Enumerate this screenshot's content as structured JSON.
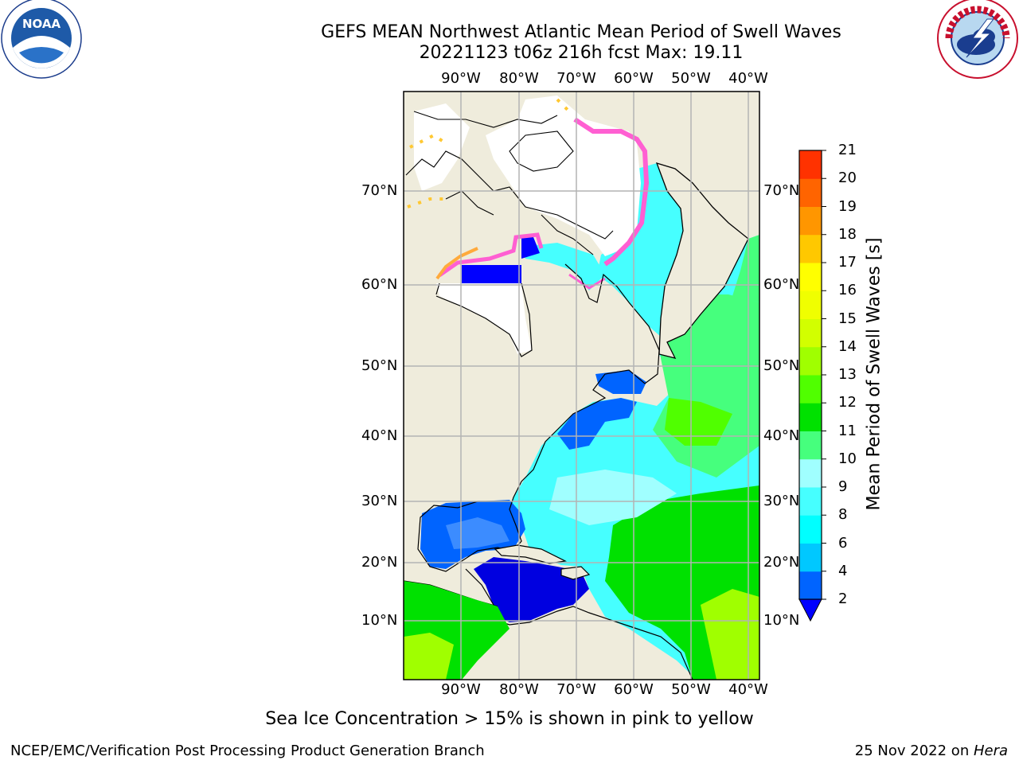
{
  "title": "GEFS MEAN Northwest Atlantic Mean Period of Swell Waves",
  "subtitle": "20221123 t06z 216h fcst   Max: 19.11",
  "logos": {
    "left": "NOAA",
    "right": "NATIONAL WEATHER SERVICE"
  },
  "map": {
    "lon_ticks": [
      "90°W",
      "80°W",
      "70°W",
      "60°W",
      "50°W",
      "40°W"
    ],
    "lat_ticks": [
      "70°N",
      "60°N",
      "50°N",
      "40°N",
      "30°N",
      "20°N",
      "10°N"
    ],
    "grid": true
  },
  "colorbar": {
    "label": "Mean Period of Swell Waves [s]",
    "ticks": [
      "2",
      "4",
      "6",
      "8",
      "9",
      "10",
      "11",
      "12",
      "13",
      "14",
      "15",
      "16",
      "17",
      "18",
      "19",
      "20",
      "21"
    ],
    "colors": [
      "#0064ff",
      "#00c8ff",
      "#00ffff",
      "#46ffff",
      "#a0ffff",
      "#46ff7d",
      "#00e100",
      "#50ff00",
      "#a0ff00",
      "#d2ff00",
      "#f0ff00",
      "#ffff00",
      "#ffc800",
      "#ff9600",
      "#ff6400",
      "#ff3200"
    ],
    "extend_color": "#0000ff"
  },
  "note": "Sea Ice Concentration > 15% is shown in pink to yellow",
  "footer": {
    "left": "NCEP/EMC/Verification Post Processing Product Generation Branch",
    "date": "25 Nov 2022 on ",
    "system": "Hera"
  }
}
